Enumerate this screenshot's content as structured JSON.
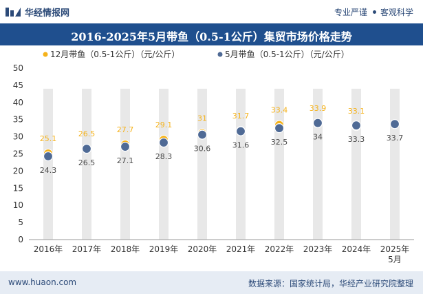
{
  "header": {
    "brand_name": "华经情报网",
    "tagline_left": "专业严谨",
    "tagline_right": "客观科学"
  },
  "colors": {
    "series1": "#f5b21a",
    "series2": "#4f6a95",
    "title_bg": "#1f4f8e",
    "column_bg": "#e8e8e8"
  },
  "chart_data": {
    "type": "scatter",
    "title": "2016-2025年5月带鱼（0.5-1公斤）集贸市场价格走势",
    "categories": [
      "2016年",
      "2017年",
      "2018年",
      "2019年",
      "2020年",
      "2021年",
      "2022年",
      "2023年",
      "2024年",
      "2025年5月"
    ],
    "ylim": [
      0,
      50
    ],
    "yticks": [
      0,
      5,
      10,
      15,
      20,
      25,
      30,
      35,
      40,
      45,
      50
    ],
    "legend_position": "top-left",
    "series": [
      {
        "name": "12月带鱼（0.5-1公斤）（元/公斤）",
        "values": [
          25.1,
          26.5,
          27.7,
          29.1,
          31,
          31.7,
          33.4,
          33.9,
          33.1,
          null
        ]
      },
      {
        "name": "5月带鱼（0.5-1公斤）（元/公斤）",
        "values": [
          24.3,
          26.5,
          27.1,
          28.3,
          30.6,
          31.6,
          32.5,
          34,
          33.3,
          33.7
        ]
      }
    ]
  },
  "footer": {
    "website": "www.huaon.com",
    "source": "数据来源：国家统计局，华经产业研究院整理"
  }
}
